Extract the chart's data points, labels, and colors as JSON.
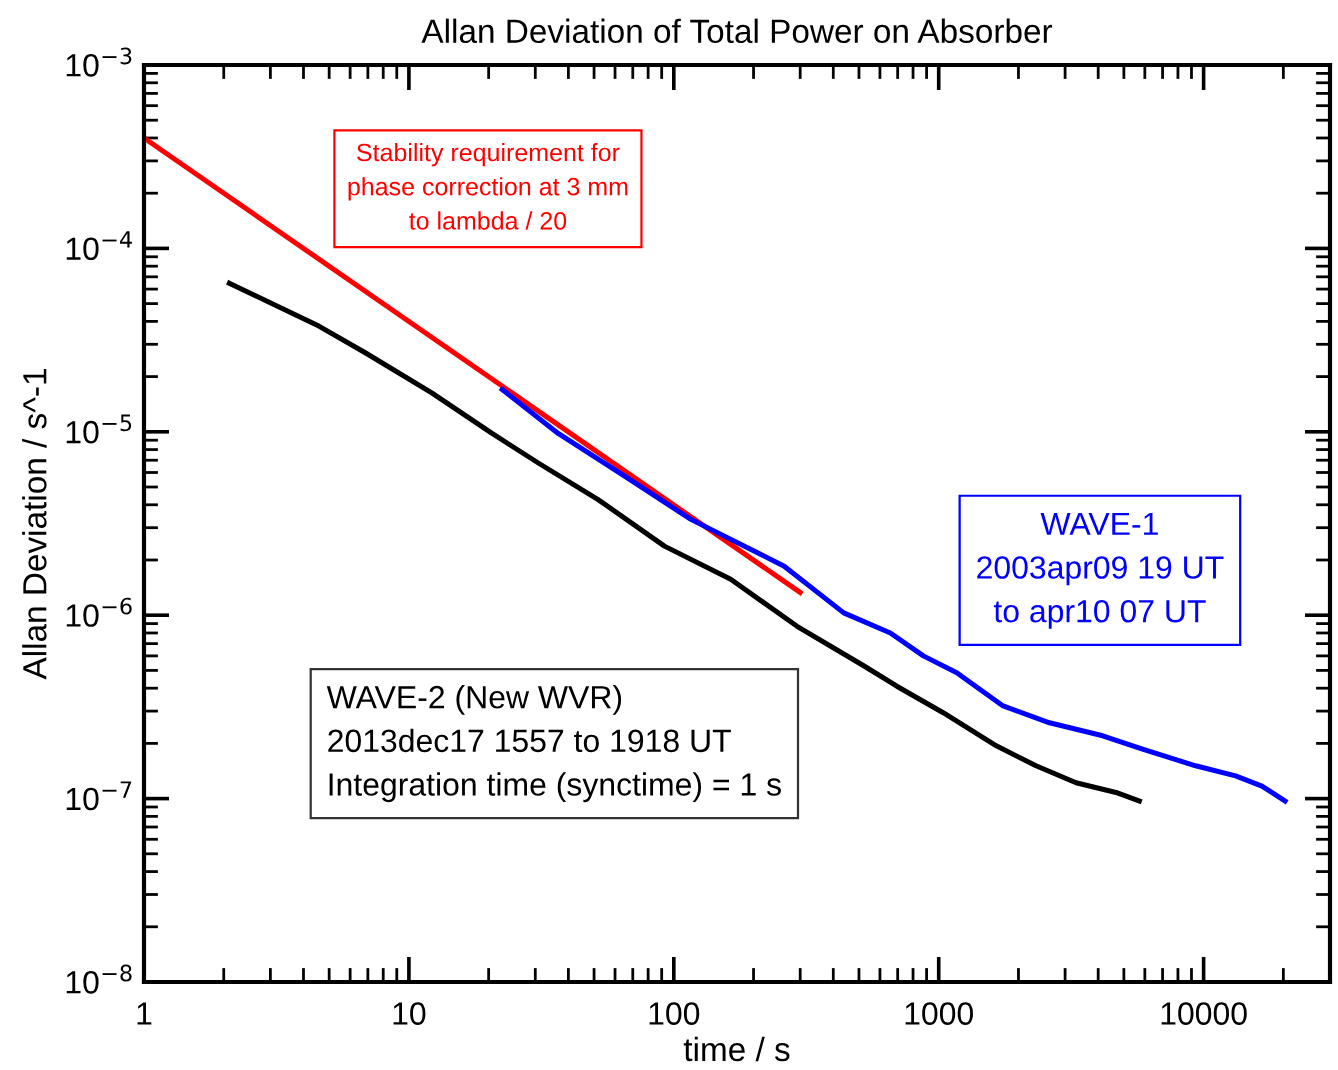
{
  "chart_data": {
    "type": "line",
    "title": "Allan Deviation of Total Power on Absorber",
    "xlabel": "time / s",
    "ylabel": "Allan Deviation / s^-1",
    "log": "xy",
    "grid": false,
    "legend": false,
    "marker": "none",
    "line_style": "solid",
    "xlim": [
      1,
      30000
    ],
    "xticks": [
      1,
      10,
      100,
      1000,
      10000
    ],
    "ylim": [
      1e-08,
      0.001
    ],
    "yticks": [
      {
        "value": 1e-08,
        "label": "10$^{−8}$"
      },
      {
        "value": 1e-07,
        "label": "10$^{−7}$"
      },
      {
        "value": 1e-06,
        "label": "10$^{−6}$"
      },
      {
        "value": 1e-05,
        "label": "10$^{−5}$"
      },
      {
        "value": 0.0001,
        "label": "10$^{−4}$"
      },
      {
        "value": 0.001,
        "label": "10$^{−3}$"
      }
    ],
    "series": [
      {
        "name": "Stability requirement for\nphase correction at 3 mm\nto lambda / 20",
        "color": "#ff0000",
        "x": [
          1,
          300
        ],
        "values": [
          0.0004,
          1.33e-06
        ]
      },
      {
        "name": "WAVE-1\n2003apr09 19 UT\nto apr10 07 UT",
        "color": "#0000ff",
        "x": [
          22.5,
          36.6,
          65.2,
          116,
          207,
          261,
          438,
          657,
          875,
          1170,
          1750,
          2620,
          4160,
          5880,
          9330,
          13200,
          16600,
          20300
        ],
        "values": [
          1.7e-05,
          9.8e-06,
          5.73e-06,
          3.33e-06,
          2.19e-06,
          1.85e-06,
          1.03e-06,
          8e-07,
          6e-07,
          4.86e-07,
          3.2e-07,
          2.59e-07,
          2.2e-07,
          1.86e-07,
          1.51e-07,
          1.33e-07,
          1.17e-07,
          9.7e-08
        ]
      },
      {
        "name": "WAVE-2 (New WVR)\n2013dec17 1557 to 1918 UT\nIntegration time (synctime) = 1 s",
        "color": "#000000",
        "x": [
          2.1,
          4.59,
          6.87,
          12.2,
          20.6,
          30.8,
          51.8,
          92.2,
          164,
          292,
          521,
          695,
          1040,
          1650,
          2330,
          3300,
          4670,
          5720
        ],
        "values": [
          6.46e-05,
          3.76e-05,
          2.69e-05,
          1.63e-05,
          9.8e-06,
          6.76e-06,
          4.27e-06,
          2.38e-06,
          1.57e-06,
          8.7e-07,
          5.3e-07,
          4.1e-07,
          2.94e-07,
          1.94e-07,
          1.51e-07,
          1.22e-07,
          1.08e-07,
          9.7e-08
        ]
      }
    ]
  }
}
